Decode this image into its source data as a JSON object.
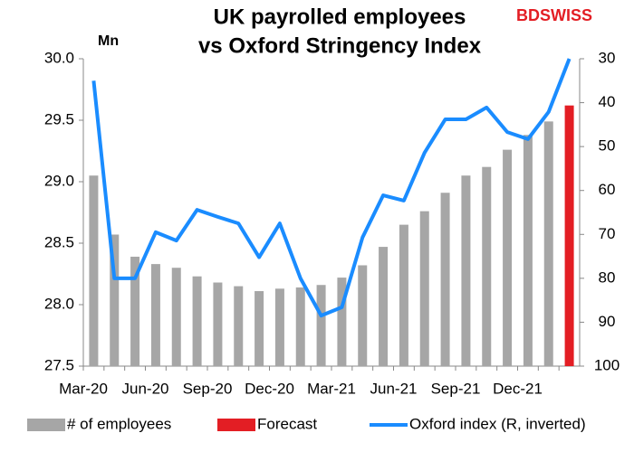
{
  "chart_data": {
    "type": "bar-line",
    "title": [
      "UK payrolled employees",
      "vs Oxford Stringency Index"
    ],
    "brand": "BDSWISS",
    "ylabel": "Mn",
    "categories": [
      "Mar-20",
      null,
      null,
      "Jun-20",
      null,
      null,
      "Sep-20",
      null,
      null,
      "Dec-20",
      null,
      null,
      "Mar-21",
      null,
      null,
      "Jun-21",
      null,
      null,
      "Sep-21",
      null,
      null,
      "Dec-21",
      null,
      null
    ],
    "series": [
      {
        "name": "# of employees",
        "color": "#a6a6a6",
        "kind": "bar",
        "values": [
          29.05,
          28.57,
          28.39,
          28.33,
          28.3,
          28.23,
          28.18,
          28.15,
          28.11,
          28.13,
          28.14,
          28.16,
          28.22,
          28.32,
          28.47,
          28.65,
          28.76,
          28.91,
          29.05,
          29.12,
          29.26,
          29.38,
          29.49,
          null
        ]
      },
      {
        "name": "Forecast",
        "color": "#e31e24",
        "kind": "bar",
        "values": [
          null,
          null,
          null,
          null,
          null,
          null,
          null,
          null,
          null,
          null,
          null,
          null,
          null,
          null,
          null,
          null,
          null,
          null,
          null,
          null,
          null,
          null,
          null,
          29.62
        ]
      },
      {
        "name": "Oxford index (R, inverted)",
        "color": "#1a8cff",
        "kind": "line",
        "axis": "y2",
        "values": [
          35,
          80,
          80,
          69.5,
          71.4,
          64.4,
          66,
          67.5,
          75.2,
          67.5,
          80,
          88.5,
          86.6,
          70.7,
          61.1,
          62.3,
          51.4,
          43.8,
          43.8,
          41.1,
          46.7,
          48.3,
          42.1,
          30
        ]
      }
    ],
    "ylim": [
      27.5,
      30
    ],
    "yticks": [
      27.5,
      {
        "value": 28,
        "label": "28.0"
      },
      28.5,
      {
        "value": 29,
        "label": "29.0"
      },
      29.5,
      {
        "value": 30,
        "label": "30.0"
      }
    ],
    "y2lim": [
      100,
      30
    ],
    "y2ticks": [
      30,
      40,
      50,
      60,
      70,
      80,
      90,
      100
    ]
  }
}
